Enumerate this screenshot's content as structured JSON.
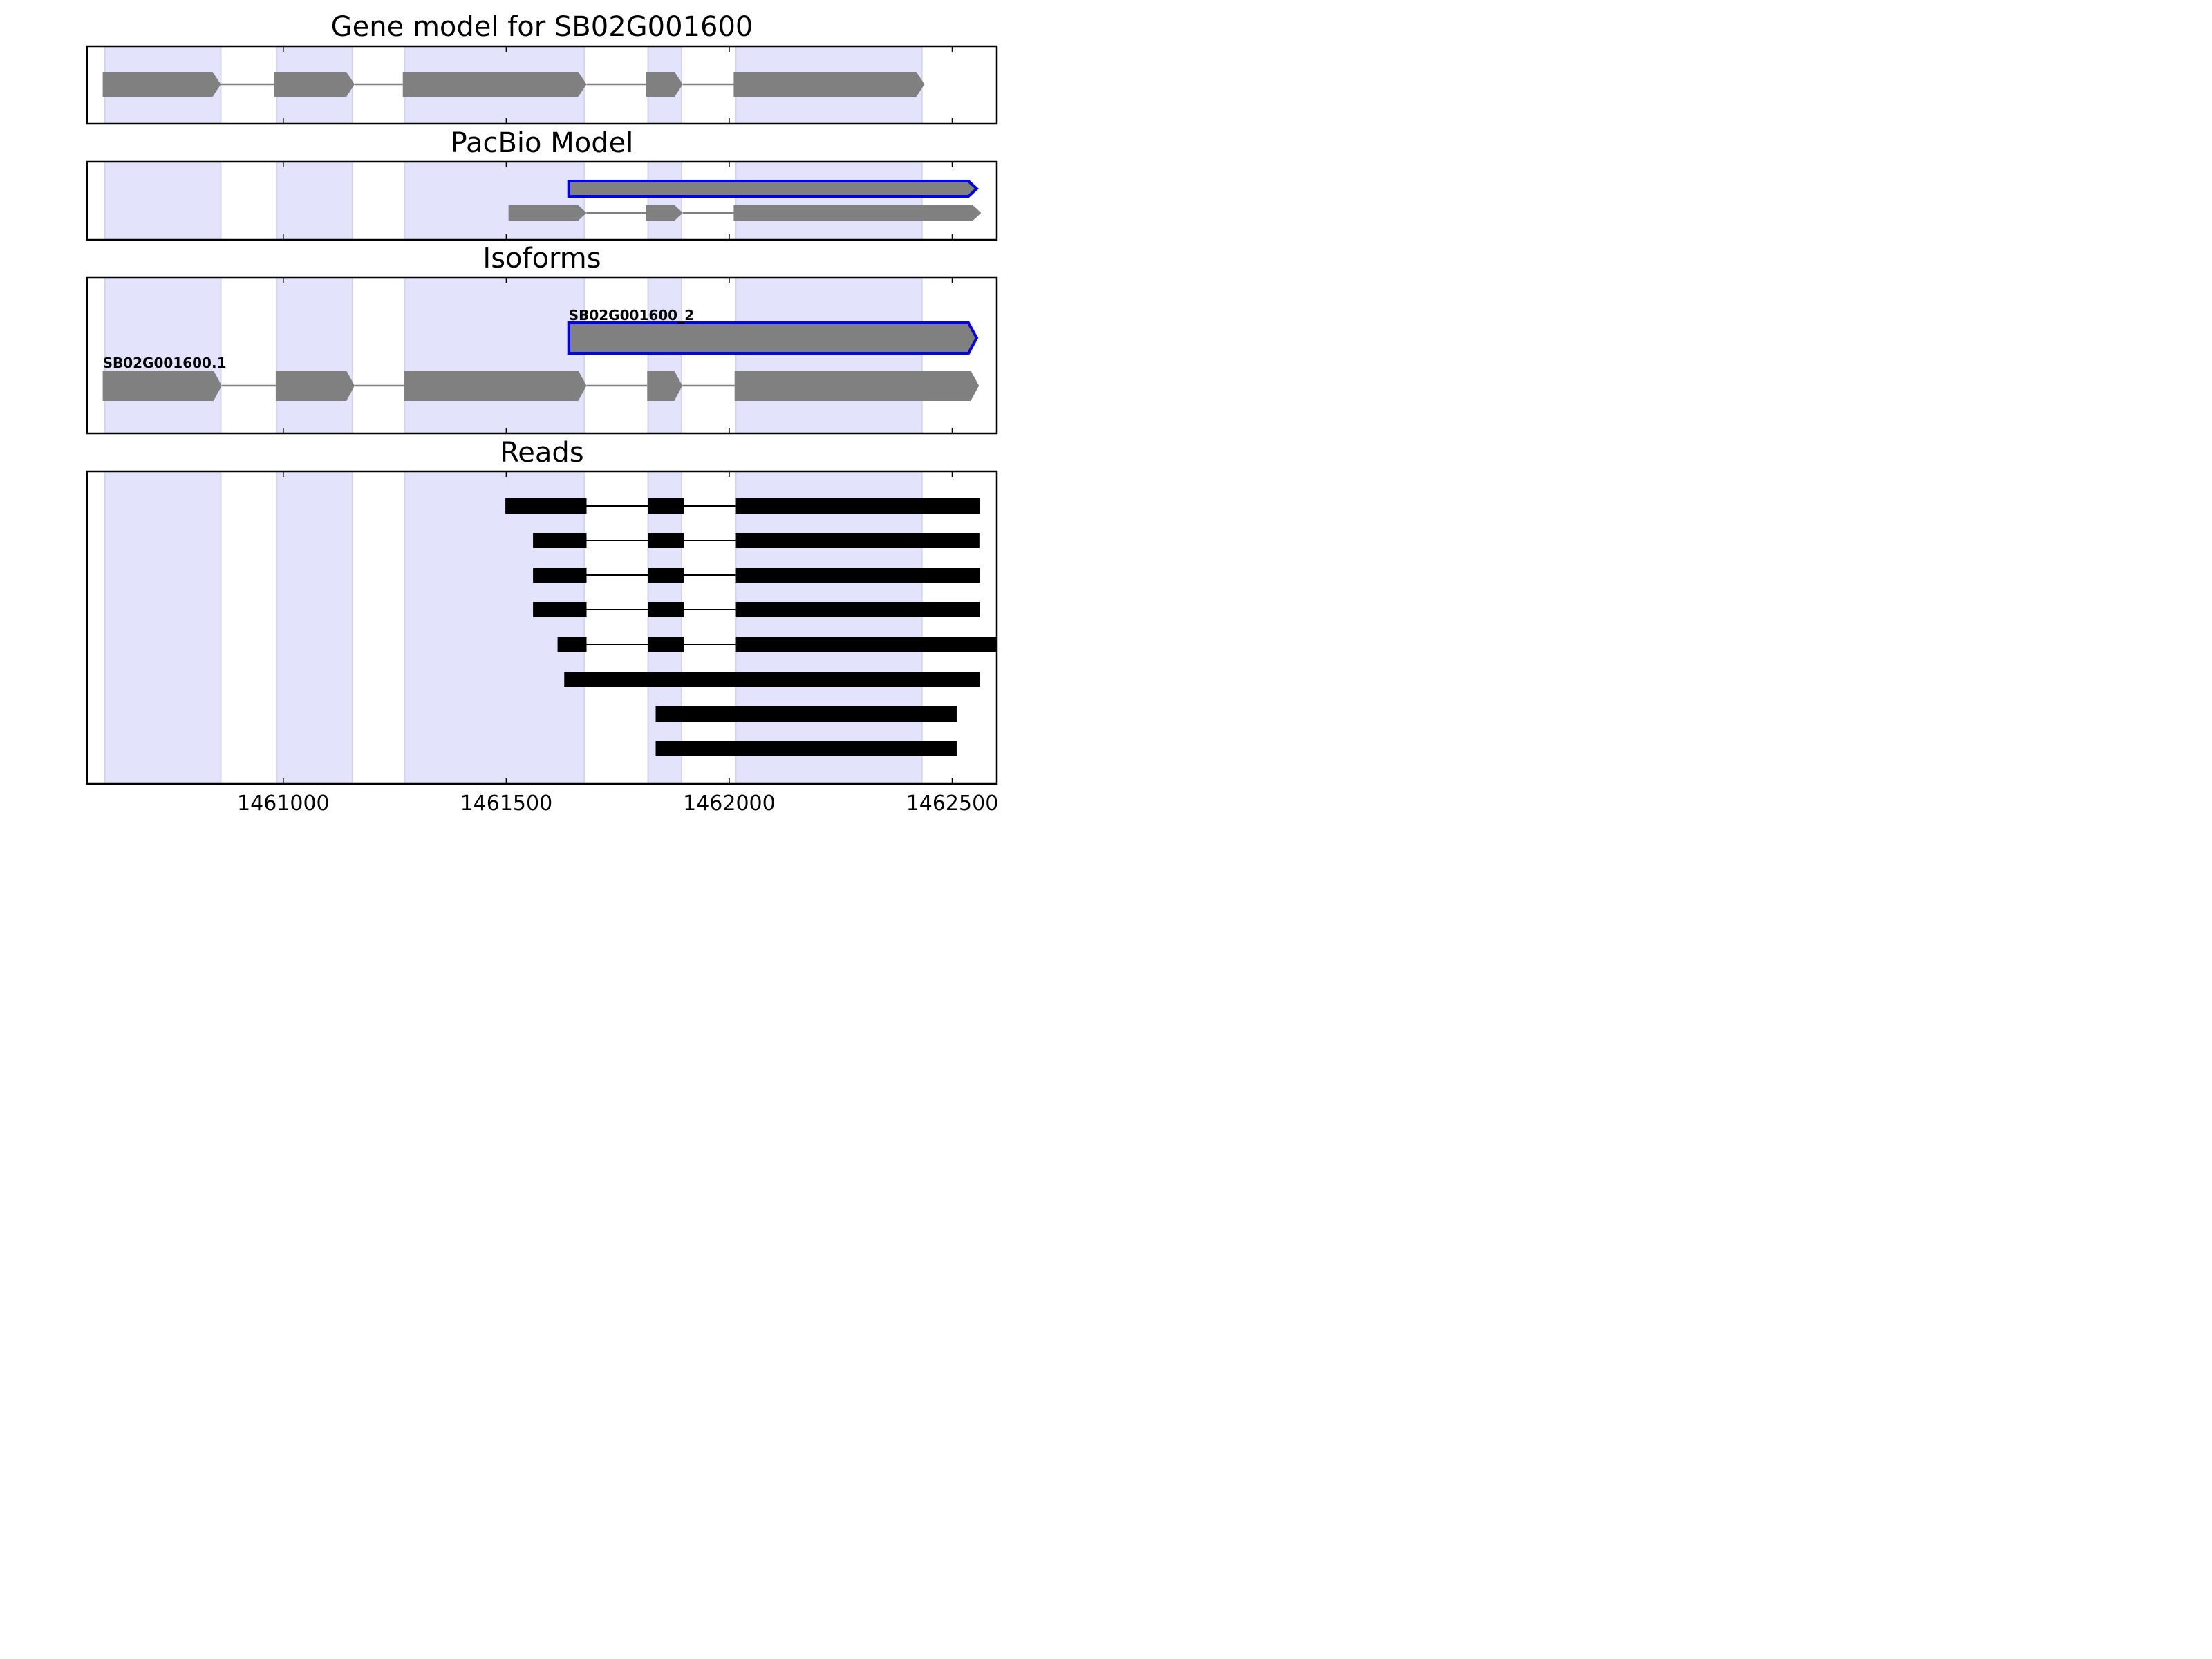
{
  "chart_data": {
    "type": "gene-structure",
    "xlim": [
      1460560,
      1462600
    ],
    "xticks": [
      1461000,
      1461500,
      1462000,
      1462500
    ],
    "tick_labels": [
      "1461000",
      "1461500",
      "1462000",
      "1462500"
    ],
    "colors": {
      "exon_shade": "#e3e3fb",
      "exon_shade_edge": "#d4d4ee",
      "model_fill": "#808080",
      "highlight": "#0000ee",
      "intron": "#808080",
      "read": "#000000"
    },
    "shaded_exons": [
      [
        1460600,
        1460860
      ],
      [
        1460985,
        1461155
      ],
      [
        1461272,
        1461675
      ],
      [
        1461818,
        1461893
      ],
      [
        1462015,
        1462432
      ]
    ],
    "panels": [
      {
        "title": "Gene model for SB02G001600",
        "tracks": [
          {
            "label": "",
            "highlight": false,
            "exons": [
              [
                1460595,
                1460860
              ],
              [
                1460980,
                1461160
              ],
              [
                1461268,
                1461680
              ],
              [
                1461814,
                1461896
              ],
              [
                1462010,
                1462438
              ]
            ]
          }
        ]
      },
      {
        "title": "PacBio Model",
        "tracks": [
          {
            "label": "",
            "highlight": true,
            "exons": [
              [
                1461640,
                1462555
              ]
            ]
          },
          {
            "label": "",
            "highlight": false,
            "exons": [
              [
                1461505,
                1461680
              ],
              [
                1461814,
                1461896
              ],
              [
                1462010,
                1462565
              ]
            ]
          }
        ]
      },
      {
        "title": "Isoforms",
        "tracks": [
          {
            "label": "SB02G001600_2",
            "highlight": true,
            "exons": [
              [
                1461640,
                1462555
              ]
            ]
          },
          {
            "label": "SB02G001600.1",
            "highlight": false,
            "exons": [
              [
                1460595,
                1460862
              ],
              [
                1460983,
                1461160
              ],
              [
                1461270,
                1461680
              ],
              [
                1461816,
                1461895
              ],
              [
                1462012,
                1462560
              ]
            ]
          }
        ]
      },
      {
        "title": "Reads",
        "tracks": [
          {
            "exons": [
              [
                1461498,
                1461680
              ],
              [
                1461818,
                1461898
              ],
              [
                1462015,
                1462562
              ]
            ]
          },
          {
            "exons": [
              [
                1461560,
                1461680
              ],
              [
                1461818,
                1461898
              ],
              [
                1462015,
                1462561
              ]
            ]
          },
          {
            "exons": [
              [
                1461560,
                1461680
              ],
              [
                1461818,
                1461898
              ],
              [
                1462015,
                1462562
              ]
            ]
          },
          {
            "exons": [
              [
                1461560,
                1461680
              ],
              [
                1461818,
                1461898
              ],
              [
                1462015,
                1462562
              ]
            ]
          },
          {
            "exons": [
              [
                1461615,
                1461680
              ],
              [
                1461818,
                1461898
              ],
              [
                1462015,
                1462600
              ]
            ]
          },
          {
            "exons": [
              [
                1461630,
                1462562
              ]
            ]
          },
          {
            "exons": [
              [
                1461835,
                1462510
              ]
            ]
          },
          {
            "exons": [
              [
                1461835,
                1462510
              ]
            ]
          }
        ]
      }
    ]
  }
}
